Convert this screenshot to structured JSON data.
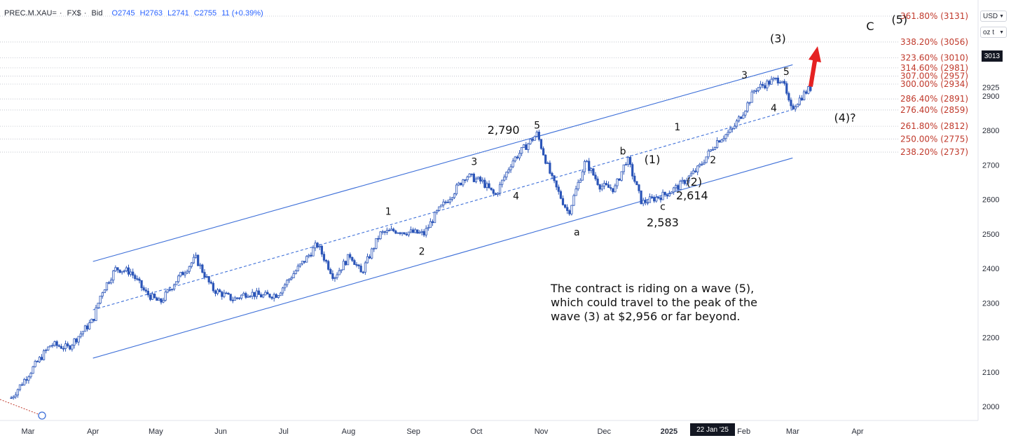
{
  "header": {
    "symbol": "PREC.M.XAU=",
    "source": "FX$",
    "mode": "Bid",
    "open": "O2745",
    "high": "H2763",
    "low": "L2741",
    "close": "C2755",
    "change": "11 (+0.39%)"
  },
  "currency_label": "USD",
  "unit_label": "oz t",
  "last_price": "3013",
  "crosshair_date": "22 Jan '25",
  "note_lines": [
    "The contract is riding on a wave (5),",
    "which could travel to the peak of the",
    "wave (3) at $2,956 or far beyond."
  ],
  "colors": {
    "candle": "#2b55b8",
    "channel": "#3d6fd8",
    "fib": "#c0392b",
    "arrow": "#e52222"
  },
  "chart_data": {
    "type": "candlestick",
    "ylim": [
      2000,
      3170
    ],
    "y_ticks": [
      2000,
      2100,
      2200,
      2300,
      2400,
      2500,
      2600,
      2700,
      2800,
      2900,
      2925
    ],
    "x_ticks": [
      "Mar",
      "Apr",
      "May",
      "Jun",
      "Jul",
      "Aug",
      "Sep",
      "Oct",
      "Nov",
      "Dec",
      "2025",
      "Feb",
      "Mar",
      "Apr"
    ],
    "fib_levels": [
      {
        "label": "361.80% (3131)",
        "value": 3131
      },
      {
        "label": "338.20% (3056)",
        "value": 3056
      },
      {
        "label": "323.60% (3010)",
        "value": 3010
      },
      {
        "label": "314.60% (2981)",
        "value": 2981
      },
      {
        "label": "307.00% (2957)",
        "value": 2957
      },
      {
        "label": "300.00% (2934)",
        "value": 2934
      },
      {
        "label": "286.40% (2891)",
        "value": 2891
      },
      {
        "label": "276.40% (2859)",
        "value": 2859
      },
      {
        "label": "261.80% (2812)",
        "value": 2812
      },
      {
        "label": "250.00% (2775)",
        "value": 2775
      },
      {
        "label": "238.20% (2737)",
        "value": 2737
      }
    ],
    "price_path": [
      [
        "Feb 22 2024",
        2025
      ],
      [
        "Mar 05 2024",
        2125
      ],
      [
        "Mar 12 2024",
        2180
      ],
      [
        "Mar 20 2024",
        2170
      ],
      [
        "Apr 01 2024",
        2250
      ],
      [
        "Apr 05 2024",
        2330
      ],
      [
        "Apr 12 2024",
        2400
      ],
      [
        "Apr 19 2024",
        2390
      ],
      [
        "Apr 26 2024",
        2330
      ],
      [
        "May 03 2024",
        2300
      ],
      [
        "May 10 2024",
        2360
      ],
      [
        "May 20 2024",
        2430
      ],
      [
        "May 28 2024",
        2340
      ],
      [
        "Jun 07 2024",
        2310
      ],
      [
        "Jun 14 2024",
        2330
      ],
      [
        "Jun 21 2024",
        2320
      ],
      [
        "Jun 28 2024",
        2325
      ],
      [
        "Jul 05 2024",
        2380
      ],
      [
        "Jul 12 2024",
        2430
      ],
      [
        "Jul 17 2024",
        2470
      ],
      [
        "Jul 25 2024",
        2375
      ],
      [
        "Aug 02 2024",
        2440
      ],
      [
        "Aug 07 2024",
        2385
      ],
      [
        "Aug 16 2024",
        2500
      ],
      [
        "Aug 23 2024",
        2510
      ],
      [
        "Sep 06 2024",
        2500
      ],
      [
        "Sep 12 2024",
        2560
      ],
      [
        "Sep 20 2024",
        2620
      ],
      [
        "Sep 26 2024",
        2670
      ],
      [
        "Oct 04 2024",
        2650
      ],
      [
        "Oct 10 2024",
        2610
      ],
      [
        "Oct 18 2024",
        2710
      ],
      [
        "Oct 30 2024",
        2790
      ],
      [
        "Nov 06 2024",
        2660
      ],
      [
        "Nov 14 2024",
        2560
      ],
      [
        "Nov 22 2024",
        2710
      ],
      [
        "Nov 29 2024",
        2640
      ],
      [
        "Dec 06 2024",
        2630
      ],
      [
        "Dec 12 2024",
        2720
      ],
      [
        "Dec 19 2024",
        2590
      ],
      [
        "Dec 30 2024",
        2614
      ],
      [
        "Jan 06 2025",
        2640
      ],
      [
        "Jan 15 2025",
        2690
      ],
      [
        "Jan 24 2025",
        2770
      ],
      [
        "Jan 31 2025",
        2800
      ],
      [
        "Feb 07 2025",
        2870
      ],
      [
        "Feb 11 2025",
        2920
      ],
      [
        "Feb 20 2025",
        2945
      ],
      [
        "Feb 24 2025",
        2950
      ],
      [
        "Feb 28 2025",
        2860
      ],
      [
        "Mar 07 2025",
        2910
      ],
      [
        "Mar 10 2025",
        2925
      ]
    ],
    "channel": [
      {
        "name": "upper",
        "from": [
          "Apr 01 2024",
          2420
        ],
        "to": [
          "Mar 01 2025",
          2990
        ]
      },
      {
        "name": "middle",
        "from": [
          "Apr 01 2024",
          2280
        ],
        "to": [
          "Mar 01 2025",
          2860
        ]
      },
      {
        "name": "lower",
        "from": [
          "Apr 01 2024",
          2140
        ],
        "to": [
          "Mar 01 2025",
          2720
        ]
      }
    ],
    "wave_labels": [
      {
        "text": "1",
        "x": "Aug 20 2024",
        "y": 2555
      },
      {
        "text": "2",
        "x": "Sep 05 2024",
        "y": 2440
      },
      {
        "text": "3",
        "x": "Sep 30 2024",
        "y": 2700
      },
      {
        "text": "4",
        "x": "Oct 20 2024",
        "y": 2600
      },
      {
        "text": "5",
        "x": "Oct 30 2024",
        "y": 2805
      },
      {
        "text": "2,790",
        "x": "Oct 14 2024",
        "y": 2790
      },
      {
        "text": "a",
        "x": "Nov 18 2024",
        "y": 2495
      },
      {
        "text": "b",
        "x": "Dec 10 2024",
        "y": 2730
      },
      {
        "text": "c",
        "x": "Dec 29 2024",
        "y": 2570
      },
      {
        "text": "2,583",
        "x": "Dec 29 2024",
        "y": 2522
      },
      {
        "text": "(1)",
        "x": "Dec 24 2024",
        "y": 2705
      },
      {
        "text": "(2)",
        "x": "Jan 13 2025",
        "y": 2640
      },
      {
        "text": "2,614",
        "x": "Jan 12 2025",
        "y": 2600
      },
      {
        "text": "1",
        "x": "Jan 05 2025",
        "y": 2800
      },
      {
        "text": "2",
        "x": "Jan 22 2025",
        "y": 2705
      },
      {
        "text": "3",
        "x": "Feb 06 2025",
        "y": 2950
      },
      {
        "text": "4",
        "x": "Feb 20 2025",
        "y": 2855
      },
      {
        "text": "5",
        "x": "Feb 26 2025",
        "y": 2960
      },
      {
        "text": "(3)",
        "x": "Feb 22 2025",
        "y": 3055
      },
      {
        "text": "(4)?",
        "x": "Mar 26 2025",
        "y": 2825
      },
      {
        "text": "C",
        "x": "Apr 07 2025",
        "y": 3090
      },
      {
        "text": "(5)",
        "x": "Apr 21 2025",
        "y": 3110
      }
    ]
  }
}
